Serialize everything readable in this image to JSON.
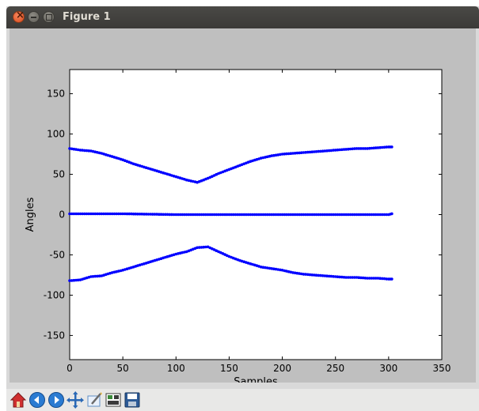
{
  "window": {
    "title": "Figure 1",
    "controls": [
      "close-icon",
      "minimize-icon",
      "maximize-icon"
    ]
  },
  "toolbar": {
    "tools": [
      {
        "name": "home-icon",
        "color": "#d02f2f"
      },
      {
        "name": "back-arrow-icon",
        "color": "#2a7bd2"
      },
      {
        "name": "forward-arrow-icon",
        "color": "#2a7bd2"
      },
      {
        "name": "pan-icon",
        "color": "#2a69b5"
      },
      {
        "name": "zoom-to-rect-icon",
        "color": "#5f8ec5"
      },
      {
        "name": "configure-subplots-icon",
        "color": "#3a3a3a"
      },
      {
        "name": "save-icon",
        "color": "#2c5a96"
      }
    ]
  },
  "chart_data": {
    "type": "line",
    "title": "",
    "xlabel": "Samples",
    "ylabel": "Angles",
    "xlim": [
      0,
      350
    ],
    "ylim": [
      -180,
      180
    ],
    "xticks": [
      0,
      50,
      100,
      150,
      200,
      250,
      300,
      350
    ],
    "yticks": [
      -150,
      -100,
      -50,
      0,
      50,
      100,
      150
    ],
    "grid": false,
    "legend": "none",
    "series_color": "#0000ff",
    "marker": "dot",
    "series": [
      {
        "x": [
          0,
          10,
          20,
          30,
          40,
          50,
          60,
          70,
          80,
          90,
          100,
          110,
          120,
          130,
          140,
          150,
          160,
          170,
          180,
          190,
          200,
          210,
          220,
          230,
          240,
          250,
          260,
          270,
          280,
          290,
          300,
          303
        ],
        "values": [
          82,
          80,
          79,
          76,
          72,
          68,
          63,
          59,
          55,
          51,
          47,
          43,
          40,
          45,
          51,
          56,
          61,
          66,
          70,
          73,
          75,
          76,
          77,
          78,
          79,
          80,
          81,
          82,
          82,
          83,
          84,
          84
        ]
      },
      {
        "x": [
          0,
          50,
          100,
          150,
          200,
          250,
          300,
          303
        ],
        "values": [
          1,
          1,
          0,
          0,
          0,
          0,
          0,
          1
        ]
      },
      {
        "x": [
          0,
          10,
          20,
          30,
          40,
          50,
          60,
          70,
          80,
          90,
          100,
          110,
          120,
          130,
          140,
          150,
          160,
          170,
          180,
          190,
          200,
          210,
          220,
          230,
          240,
          250,
          260,
          270,
          280,
          290,
          300,
          303
        ],
        "values": [
          -82,
          -81,
          -77,
          -76,
          -72,
          -69,
          -65,
          -61,
          -57,
          -53,
          -49,
          -46,
          -41,
          -40,
          -46,
          -52,
          -57,
          -61,
          -65,
          -67,
          -69,
          -72,
          -74,
          -75,
          -76,
          -77,
          -78,
          -78,
          -79,
          -79,
          -80,
          -80
        ]
      }
    ]
  }
}
